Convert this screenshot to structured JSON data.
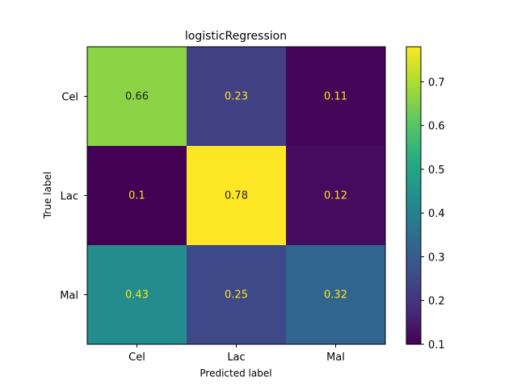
{
  "chart_data": {
    "type": "heatmap",
    "title": "logisticRegression",
    "xlabel": "Predicted label",
    "ylabel": "True label",
    "rows": [
      "Cel",
      "Lac",
      "Mal"
    ],
    "columns": [
      "Cel",
      "Lac",
      "Mal"
    ],
    "values": [
      [
        0.66,
        0.23,
        0.11
      ],
      [
        0.1,
        0.78,
        0.12
      ],
      [
        0.43,
        0.25,
        0.32
      ]
    ],
    "cell_labels": [
      [
        "0.66",
        "0.23",
        "0.11"
      ],
      [
        "0.1",
        "0.78",
        "0.12"
      ],
      [
        "0.43",
        "0.25",
        "0.32"
      ]
    ],
    "colormap": "viridis",
    "color_range": [
      0.1,
      0.78
    ],
    "colorbar_ticks": [
      "0.1",
      "0.2",
      "0.3",
      "0.4",
      "0.5",
      "0.6",
      "0.7"
    ],
    "text_color_light": "#ffe419",
    "text_color_dark": "#222222"
  }
}
